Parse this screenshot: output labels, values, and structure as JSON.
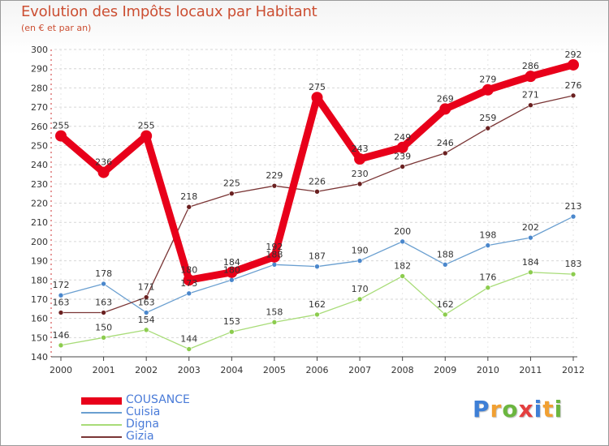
{
  "header": {
    "title": "Evolution des Impôts locaux par Habitant",
    "subtitle": "(en € et par an)"
  },
  "logo": {
    "letters": [
      "P",
      "r",
      "o",
      "x",
      "i",
      "t",
      "i"
    ],
    "colors": [
      "#3e7fd6",
      "#f1a032",
      "#6bb63f",
      "#e43f3f",
      "#3e7fd6",
      "#f1a032",
      "#6bb63f"
    ]
  },
  "chart_data": {
    "type": "line",
    "title": "Evolution des Impôts locaux par Habitant",
    "subtitle": "(en € et par an)",
    "xlabel": "",
    "ylabel": "",
    "ylim": [
      140,
      300
    ],
    "yticks": [
      140,
      150,
      160,
      170,
      180,
      190,
      200,
      210,
      220,
      230,
      240,
      250,
      260,
      270,
      280,
      290,
      300
    ],
    "grid": "horizontal dashed",
    "legend_position": "bottom-left",
    "categories": [
      "2000",
      "2001",
      "2002",
      "2003",
      "2004",
      "2005",
      "2006",
      "2007",
      "2008",
      "2009",
      "2010",
      "2011",
      "2012"
    ],
    "series": [
      {
        "name": "COUSANCE",
        "color": "#e8001a",
        "marker": "#e8001a",
        "emphasis": true,
        "values": [
          255,
          236,
          255,
          180,
          184,
          192,
          275,
          243,
          249,
          269,
          279,
          286,
          292
        ]
      },
      {
        "name": "Cuisia",
        "color": "#6a9fd0",
        "marker": "#4a87cc",
        "emphasis": false,
        "values": [
          172,
          178,
          163,
          173,
          180,
          188,
          187,
          190,
          200,
          188,
          198,
          202,
          213
        ]
      },
      {
        "name": "Digna",
        "color": "#a8dc78",
        "marker": "#8ccc4e",
        "emphasis": false,
        "values": [
          146,
          150,
          154,
          144,
          153,
          158,
          162,
          170,
          182,
          162,
          176,
          184,
          183
        ]
      },
      {
        "name": "Gizia",
        "color": "#7a3535",
        "marker": "#6a2020",
        "emphasis": false,
        "values": [
          163,
          163,
          171,
          218,
          225,
          229,
          226,
          230,
          239,
          246,
          259,
          271,
          276
        ]
      }
    ]
  }
}
